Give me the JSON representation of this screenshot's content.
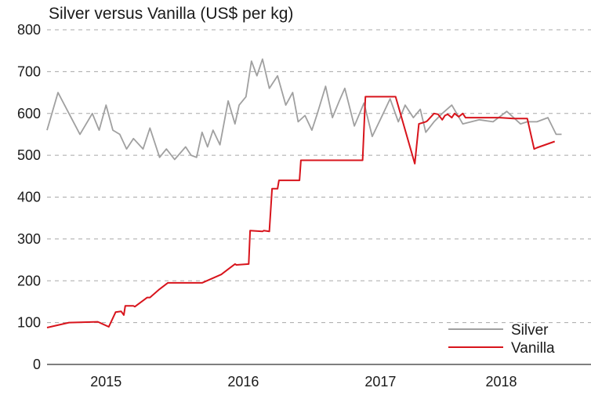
{
  "chart_data": {
    "type": "line",
    "title": "Silver versus Vanilla (US$ per kg)",
    "xlabel": "",
    "ylabel": "",
    "ylim": [
      0,
      800
    ],
    "yticks": [
      "0",
      "100",
      "200",
      "300",
      "400",
      "500",
      "600",
      "700",
      "800"
    ],
    "xlim": [
      2014.55,
      2018.4
    ],
    "xticks": [
      {
        "label": "2015",
        "x": 2014.98
      },
      {
        "label": "2016",
        "x": 2015.98
      },
      {
        "label": "2017",
        "x": 2016.98
      },
      {
        "label": "2018",
        "x": 2017.86
      }
    ],
    "grid": "horizontal-dashed",
    "legend_position": "bottom-right",
    "series": [
      {
        "name": "Silver",
        "color": "#a0a0a0",
        "x": [
          2014.55,
          2014.63,
          2014.71,
          2014.79,
          2014.88,
          2014.93,
          2014.98,
          2015.03,
          2015.08,
          2015.13,
          2015.18,
          2015.25,
          2015.3,
          2015.37,
          2015.42,
          2015.48,
          2015.52,
          2015.56,
          2015.6,
          2015.64,
          2015.68,
          2015.72,
          2015.76,
          2015.81,
          2015.87,
          2015.92,
          2015.95,
          2016.0,
          2016.04,
          2016.08,
          2016.12,
          2016.17,
          2016.23,
          2016.29,
          2016.34,
          2016.38,
          2016.43,
          2016.48,
          2016.52,
          2016.58,
          2016.63,
          2016.68,
          2016.72,
          2016.79,
          2016.86,
          2016.92,
          2017.0,
          2017.05,
          2017.11,
          2017.16,
          2017.22,
          2017.27,
          2017.31,
          2017.37,
          2017.43,
          2017.5,
          2017.58,
          2017.7,
          2017.8,
          2017.9,
          2018.0,
          2018.05,
          2018.12,
          2018.2,
          2018.26,
          2018.3
        ],
        "values": [
          560,
          650,
          600,
          550,
          600,
          560,
          620,
          560,
          550,
          515,
          540,
          515,
          565,
          495,
          515,
          490,
          505,
          520,
          500,
          495,
          555,
          520,
          560,
          525,
          630,
          575,
          620,
          640,
          725,
          690,
          730,
          660,
          690,
          620,
          650,
          580,
          595,
          560,
          600,
          665,
          590,
          630,
          660,
          570,
          625,
          545,
          600,
          635,
          580,
          620,
          590,
          610,
          555,
          580,
          600,
          620,
          575,
          585,
          580,
          605,
          575,
          580,
          580,
          590,
          550,
          550
        ]
      },
      {
        "name": "Vanilla",
        "color": "#d8141c",
        "x": [
          2014.55,
          2014.71,
          2014.92,
          2015.0,
          2015.05,
          2015.09,
          2015.11,
          2015.12,
          2015.18,
          2015.19,
          2015.28,
          2015.3,
          2015.37,
          2015.43,
          2015.48,
          2015.55,
          2015.68,
          2015.82,
          2015.88,
          2015.92,
          2015.93,
          2016.02,
          2016.03,
          2016.12,
          2016.13,
          2016.17,
          2016.19,
          2016.23,
          2016.24,
          2016.39,
          2016.4,
          2016.85,
          2016.87,
          2016.99,
          2017.09,
          2017.23,
          2017.26,
          2017.31,
          2017.32,
          2017.37,
          2017.4,
          2017.43,
          2017.45,
          2017.47,
          2017.5,
          2017.52,
          2017.55,
          2017.58,
          2017.6,
          2017.65,
          2017.75,
          2017.85,
          2017.95,
          2018.05,
          2018.1,
          2018.12,
          2018.25
        ],
        "values": [
          88,
          100,
          102,
          90,
          125,
          127,
          118,
          140,
          140,
          138,
          160,
          160,
          180,
          195,
          195,
          195,
          195,
          215,
          230,
          240,
          238,
          240,
          320,
          318,
          320,
          318,
          420,
          420,
          440,
          440,
          488,
          488,
          640,
          640,
          640,
          480,
          575,
          580,
          582,
          600,
          598,
          585,
          595,
          598,
          590,
          600,
          592,
          600,
          590,
          590,
          590,
          590,
          588,
          588,
          515,
          518,
          533
        ]
      }
    ]
  }
}
